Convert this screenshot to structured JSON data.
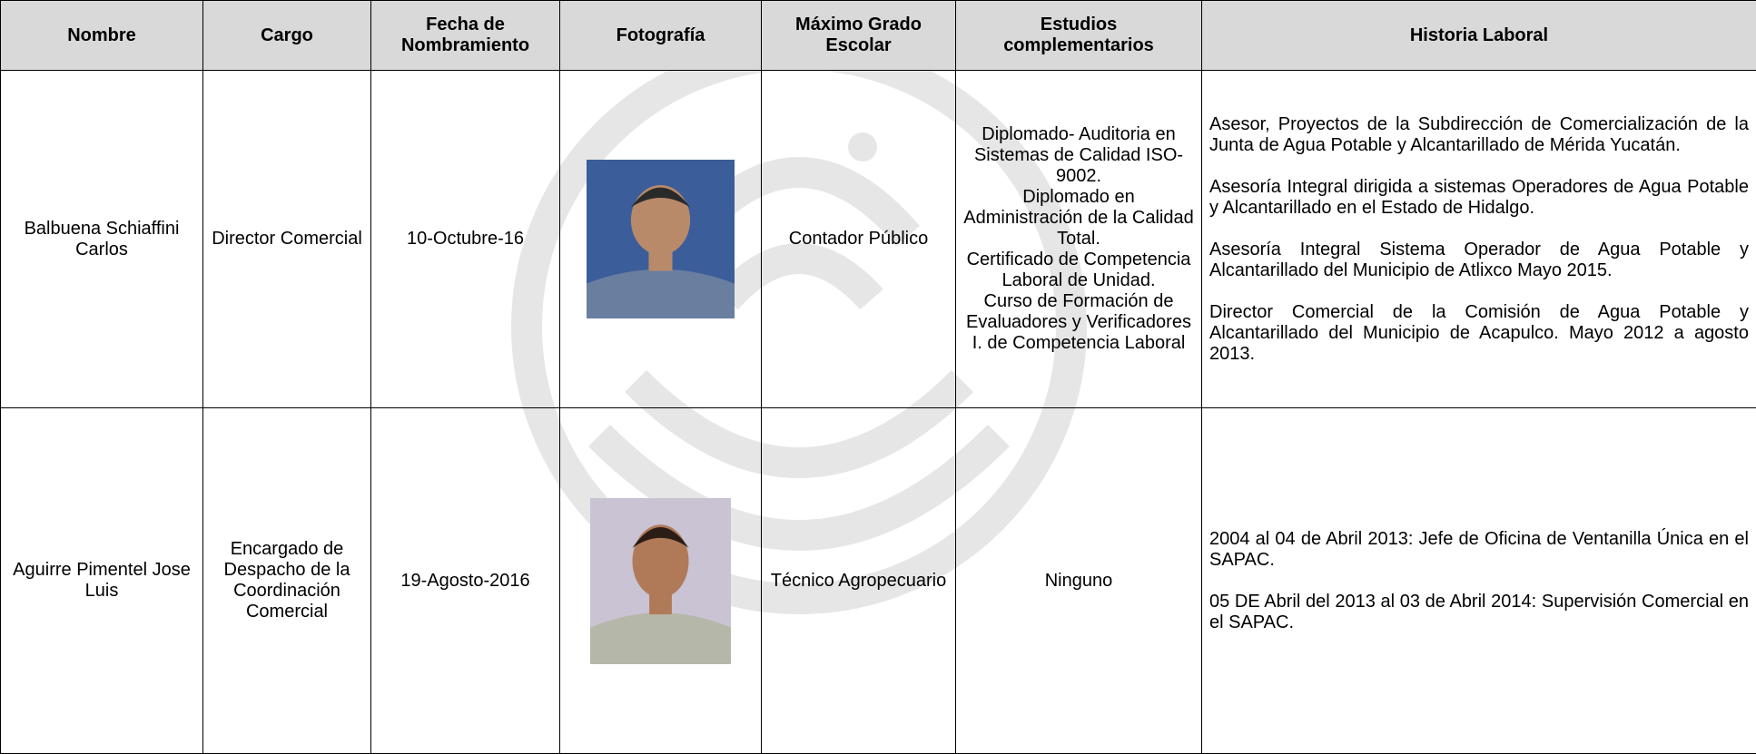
{
  "table": {
    "header": [
      "Nombre",
      "Cargo",
      "Fecha de Nombramiento",
      "Fotografía",
      "Máximo Grado Escolar",
      "Estudios complementarios",
      "Historia Laboral"
    ],
    "rows": [
      {
        "nombre": "Balbuena Schiaffini Carlos",
        "cargo": "Director Comercial",
        "fecha": "10-Octubre-16",
        "grado": "Contador Público",
        "estudios": [
          "Diplomado- Auditoria en Sistemas de Calidad ISO-9002.",
          "Diplomado en Administración de la Calidad Total.",
          "Certificado de Competencia Laboral de Unidad.",
          "Curso de Formación de Evaluadores y Verificadores I. de Competencia Laboral"
        ],
        "historia": [
          "Asesor, Proyectos de la Subdirección de Comercialización de la Junta de Agua Potable y Alcantarillado de Mérida Yucatán.",
          "Asesoría Integral dirigida a sistemas Operadores de Agua Potable y Alcantarillado en el Estado de Hidalgo.",
          "Asesoría Integral Sistema Operador de Agua Potable y Alcantarillado del Municipio de Atlixco Mayo 2015.",
          "Director Comercial de la Comisión de Agua Potable y Alcantarillado del Municipio de Acapulco. Mayo 2012 a agosto 2013."
        ]
      },
      {
        "nombre": "Aguirre Pimentel Jose Luis",
        "cargo": "Encargado de Despacho de la Coordinación Comercial",
        "fecha": "19-Agosto-2016",
        "grado": "Técnico Agropecuario",
        "estudios": [
          "Ninguno"
        ],
        "historia": [
          "2004 al 04 de Abril 2013: Jefe de Oficina de Ventanilla Única en el SAPAC.",
          "05 DE Abril del 2013 al 03 de Abril 2014: Supervisión Comercial en el SAPAC."
        ]
      }
    ]
  }
}
